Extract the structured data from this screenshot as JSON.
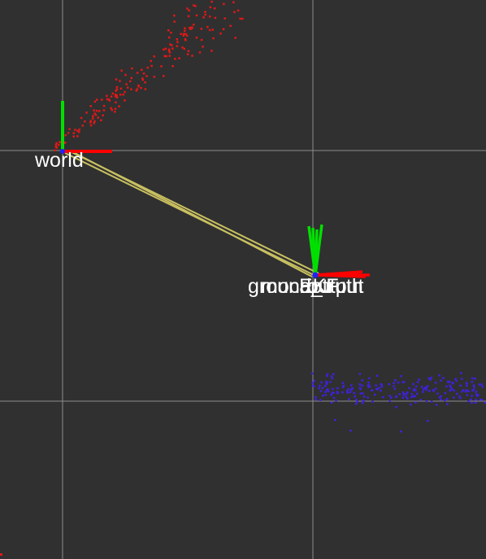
{
  "view": {
    "background_color": "#303030",
    "grid_color": "#8c8c8c"
  },
  "frames": [
    {
      "id": "world",
      "label": "world"
    },
    {
      "id": "ground_truth",
      "label": "ground_truth"
    },
    {
      "id": "mocap",
      "label": "mocap"
    },
    {
      "id": "EKF",
      "label": "EKF"
    },
    {
      "id": "output",
      "label": "output"
    }
  ],
  "colors": {
    "axis_x": "#ff0000",
    "axis_y": "#00e000",
    "axis_z": "#2020ff",
    "tf_link": "#c8c060",
    "cloud_top": "#e01818",
    "cloud_bottom": "#4020e0"
  }
}
